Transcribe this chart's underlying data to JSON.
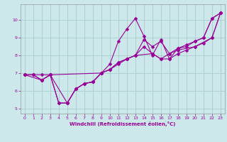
{
  "xlabel": "Windchill (Refroidissement éolien,°C)",
  "bg_color": "#cce8ea",
  "line_color": "#990099",
  "grid_color": "#aacccc",
  "xlim": [
    -0.5,
    23.5
  ],
  "ylim": [
    4.7,
    10.9
  ],
  "xticks": [
    0,
    1,
    2,
    3,
    4,
    5,
    6,
    7,
    8,
    9,
    10,
    11,
    12,
    13,
    14,
    15,
    16,
    17,
    18,
    19,
    20,
    21,
    22,
    23
  ],
  "yticks": [
    5,
    6,
    7,
    8,
    9,
    10
  ],
  "series": [
    {
      "x": [
        0,
        1,
        2,
        3,
        4,
        5,
        6,
        7,
        8,
        9,
        10,
        11,
        12,
        13,
        14,
        15,
        16,
        17,
        18,
        19,
        20,
        21,
        22,
        23
      ],
      "y": [
        6.9,
        6.9,
        6.6,
        6.9,
        5.3,
        5.3,
        6.1,
        6.4,
        6.5,
        7.0,
        7.5,
        8.8,
        9.5,
        10.1,
        9.1,
        8.0,
        8.9,
        7.8,
        8.4,
        8.5,
        8.8,
        9.0,
        10.1,
        10.4
      ]
    },
    {
      "x": [
        0,
        1,
        2,
        3,
        4,
        5,
        6,
        7,
        8,
        9,
        10,
        11,
        12,
        13,
        14,
        15,
        16,
        17,
        18,
        20,
        22,
        23
      ],
      "y": [
        6.9,
        6.9,
        6.6,
        6.9,
        5.3,
        5.3,
        6.1,
        6.4,
        6.5,
        7.0,
        7.2,
        7.6,
        7.8,
        8.0,
        8.5,
        8.1,
        7.8,
        8.1,
        8.3,
        8.5,
        9.0,
        10.4
      ]
    },
    {
      "x": [
        0,
        2,
        3,
        5,
        6,
        7,
        8,
        9,
        10,
        11,
        12,
        13,
        15,
        16,
        17,
        18,
        19,
        20,
        21,
        22,
        23
      ],
      "y": [
        6.9,
        6.6,
        6.9,
        5.3,
        6.1,
        6.4,
        6.5,
        7.0,
        7.2,
        7.5,
        7.8,
        8.0,
        8.1,
        7.8,
        7.8,
        8.1,
        8.3,
        8.5,
        8.7,
        9.0,
        10.4
      ]
    },
    {
      "x": [
        0,
        1,
        2,
        3,
        9,
        10,
        11,
        12,
        13,
        14,
        15,
        16,
        17,
        18,
        19,
        20,
        21,
        22,
        23
      ],
      "y": [
        6.9,
        6.9,
        6.9,
        6.9,
        7.0,
        7.2,
        7.6,
        7.8,
        8.0,
        8.9,
        8.5,
        8.8,
        8.1,
        8.4,
        8.6,
        8.8,
        9.0,
        10.1,
        10.4
      ]
    }
  ]
}
